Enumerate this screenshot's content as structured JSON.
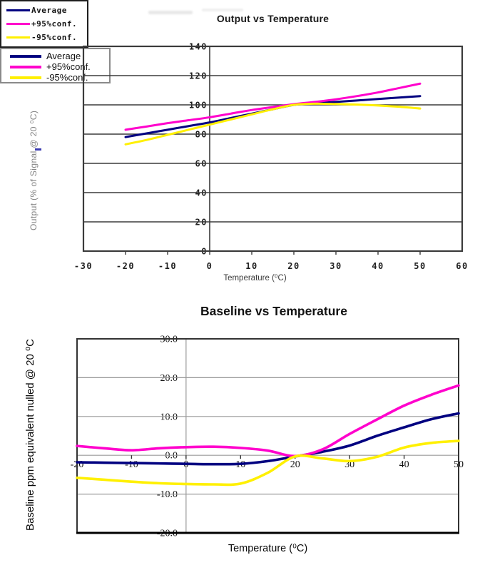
{
  "page": {
    "background": "#ffffff"
  },
  "chart_data": [
    {
      "type": "line",
      "title": "Output vs Temperature",
      "xlabel": "Temperature (⁰C)",
      "ylabel": "Output (% of Signal @ 20 ⁰C)",
      "xlim": [
        -30,
        60
      ],
      "ylim": [
        0,
        140
      ],
      "x_ticks": [
        "-30",
        "-20",
        "-10",
        "0",
        "10",
        "20",
        "30",
        "40",
        "50",
        "60"
      ],
      "y_ticks": [
        "140",
        "120",
        "100",
        "80",
        "60",
        "40",
        "20",
        "0"
      ],
      "grid": "horizontal-on",
      "legend_position": "center-right-inside",
      "x": [
        -20,
        -15,
        -10,
        -5,
        0,
        5,
        10,
        15,
        20,
        25,
        30,
        35,
        40,
        45,
        50
      ],
      "series": [
        {
          "name": "Average",
          "color": "#000080",
          "values": [
            78,
            80.5,
            83,
            85.5,
            88,
            91,
            94,
            97,
            100,
            101.2,
            102,
            103,
            104,
            105,
            106
          ]
        },
        {
          "name": "+95%conf.",
          "color": "#FF00CC",
          "values": [
            83,
            85.2,
            87.5,
            89.5,
            91.5,
            94,
            96.5,
            98.5,
            100.5,
            102,
            103.8,
            106,
            108.5,
            111.5,
            114.5
          ]
        },
        {
          "name": "-95%conf.",
          "color": "#FFF000",
          "values": [
            73,
            76,
            79.5,
            83,
            86.5,
            90,
            93.5,
            97,
            100,
            100.8,
            100.6,
            100.2,
            99.6,
            98.7,
            97.5
          ]
        }
      ]
    },
    {
      "type": "line",
      "title": "Baseline vs Temperature",
      "xlabel": "Temperature (⁰C)",
      "ylabel": "Baseline ppm equivalent nulled @ 20 ⁰C",
      "xlim": [
        -20,
        50
      ],
      "ylim": [
        -20,
        30
      ],
      "x_ticks": [
        "-20",
        "-10",
        "0",
        "10",
        "20",
        "30",
        "40",
        "50"
      ],
      "y_ticks": [
        "30.0",
        "20.0",
        "10.0",
        "0.0",
        "-10.0",
        "-20.0"
      ],
      "grid": "horizontal-on",
      "legend_position": "top-center-inside",
      "x": [
        -20,
        -15,
        -10,
        -5,
        0,
        5,
        10,
        15,
        20,
        25,
        30,
        35,
        40,
        45,
        50
      ],
      "series": [
        {
          "name": "Average",
          "color": "#000080",
          "values": [
            -1.8,
            -1.9,
            -2.0,
            -2.1,
            -2.2,
            -2.3,
            -2.2,
            -1.5,
            -0.3,
            0.9,
            2.5,
            5.0,
            7.2,
            9.3,
            10.8
          ]
        },
        {
          "name": "+95%conf.",
          "color": "#FF00CC",
          "values": [
            2.4,
            1.8,
            1.3,
            1.8,
            2.1,
            2.2,
            1.9,
            1.2,
            -0.2,
            1.5,
            5.5,
            9.2,
            12.8,
            15.6,
            18.0
          ]
        },
        {
          "name": "-95%conf.",
          "color": "#FFF000",
          "values": [
            -5.8,
            -6.3,
            -6.8,
            -7.2,
            -7.4,
            -7.5,
            -7.3,
            -4.5,
            -0.3,
            -0.8,
            -1.5,
            -0.4,
            2.0,
            3.2,
            3.7
          ]
        }
      ]
    }
  ]
}
